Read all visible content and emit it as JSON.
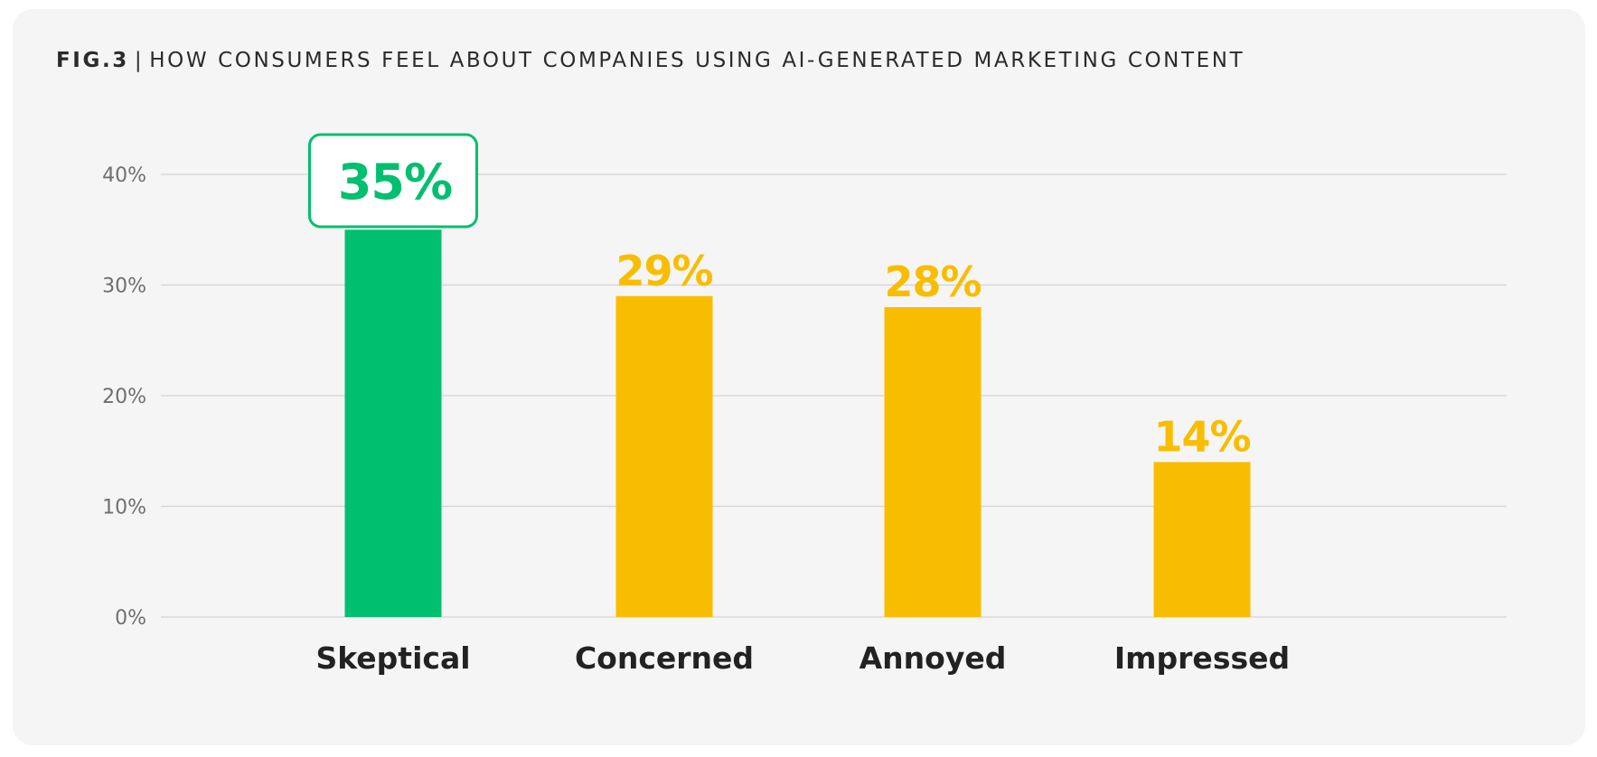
{
  "title": {
    "fig_label": "FIG.3",
    "separator": "|",
    "text": "HOW CONSUMERS FEEL ABOUT COMPANIES USING AI-GENERATED MARKETING CONTENT"
  },
  "colors": {
    "background": "#f5f5f5",
    "highlight": "#00bf6f",
    "bar": "#f9bd00",
    "gridline": "#d4d4d4",
    "tick_text": "#6f6f6f",
    "category_text": "#222222"
  },
  "chart_data": {
    "type": "bar",
    "categories": [
      "Skeptical",
      "Concerned",
      "Annoyed",
      "Impressed"
    ],
    "values": [
      35,
      29,
      28,
      14
    ],
    "value_labels": [
      "35%",
      "29%",
      "28%",
      "14%"
    ],
    "highlight_index": 0,
    "ylim": [
      0,
      40
    ],
    "yticks": [
      0,
      10,
      20,
      30,
      40
    ],
    "ytick_labels": [
      "0%",
      "10%",
      "20%",
      "30%",
      "40%"
    ],
    "xlabel": "",
    "ylabel": "",
    "grid": true,
    "legend": false
  }
}
